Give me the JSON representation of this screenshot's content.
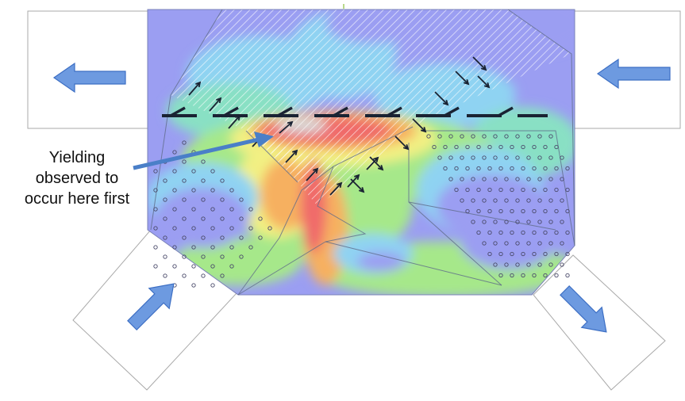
{
  "annotation": {
    "lines": [
      "Yielding",
      "observed to",
      "occur here first"
    ]
  },
  "colors": {
    "contour_low": "#9b9ef2",
    "contour_mid_low": "#8fd3f2",
    "contour_mid": "#89e0c4",
    "contour_green": "#a6e88a",
    "contour_yellow": "#f2f083",
    "contour_orange": "#f6b060",
    "contour_red": "#f06b6b",
    "load_arrow_fill": "#6d9ae0",
    "load_arrow_stroke": "#3d6fc4",
    "annotation_arrow": "#4a7fc8",
    "dash_line": "#1a2333",
    "shear_arrow": "#1a2333"
  },
  "icons": {
    "load_arrow": "block-arrow-icon",
    "shear_arrow": "small-arrow-icon",
    "bolt_hole": "circle-icon"
  }
}
